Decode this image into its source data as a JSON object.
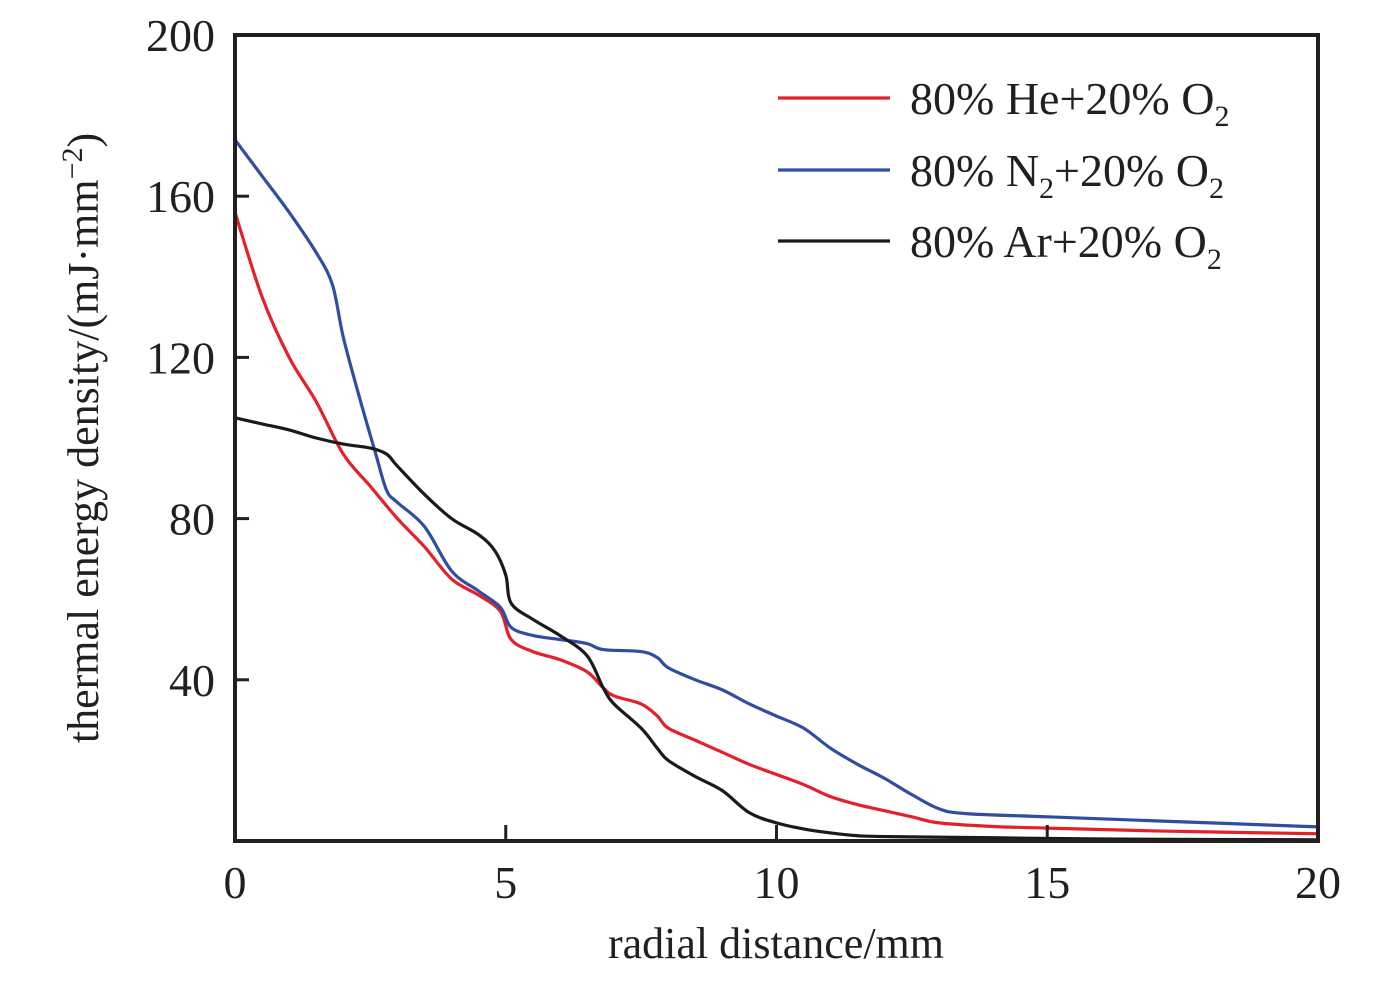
{
  "chart_data": {
    "type": "line",
    "title": "",
    "xlabel": "radial distance/mm",
    "ylabel_parts": [
      {
        "t": "thermal energy density/(mJ·mm"
      },
      {
        "sup": "−2"
      },
      {
        "t": ")"
      }
    ],
    "xlim": [
      0,
      20
    ],
    "ylim": [
      0,
      200
    ],
    "xticks": [
      0,
      5,
      10,
      15,
      20
    ],
    "yticks": [
      40,
      80,
      120,
      160,
      200
    ],
    "ytick_labels_extra": [],
    "grid": false,
    "legend_position": "top-right",
    "series": [
      {
        "name": "80% He+20% O2",
        "label_parts": [
          {
            "t": "80% He+20% O"
          },
          {
            "sub": "2"
          }
        ],
        "color": "#e5202a",
        "x": [
          0,
          0.5,
          1,
          1.5,
          2,
          2.5,
          3,
          3.5,
          4,
          4.5,
          4.9,
          5.1,
          5.5,
          6,
          6.5,
          6.8,
          7,
          7.5,
          7.8,
          8,
          8.5,
          9,
          9.5,
          10,
          10.5,
          11,
          11.5,
          12,
          12.5,
          13,
          14,
          15,
          17,
          20
        ],
        "y": [
          156,
          135,
          120,
          109,
          96,
          88,
          80,
          73,
          65,
          61,
          57,
          50,
          47,
          45,
          42,
          38,
          36,
          34,
          31,
          28,
          25,
          22,
          19,
          16.5,
          14,
          11,
          9,
          7.5,
          6,
          4.5,
          3.6,
          3.2,
          2.5,
          1.8
        ]
      },
      {
        "name": "80% N2+20% O2",
        "label_parts": [
          {
            "t": "80% N"
          },
          {
            "sub": "2"
          },
          {
            "t": "+20% O"
          },
          {
            "sub": "2"
          }
        ],
        "color": "#2f4ea2",
        "x": [
          0,
          0.5,
          1,
          1.5,
          1.8,
          2,
          2.3,
          2.6,
          2.8,
          3,
          3.5,
          4,
          4.5,
          4.9,
          5.1,
          5.5,
          6,
          6.5,
          6.8,
          7.5,
          7.8,
          8,
          8.5,
          9,
          9.5,
          10,
          10.5,
          11,
          11.5,
          12,
          12.5,
          13,
          13.5,
          15,
          17,
          20
        ],
        "y": [
          174,
          165,
          156,
          146,
          138,
          125,
          110,
          96,
          87,
          84,
          78,
          67,
          62,
          58,
          53,
          51,
          50,
          49,
          47.5,
          47,
          45.5,
          43,
          40,
          37.5,
          34,
          31,
          28,
          23,
          19,
          15.5,
          11.5,
          8,
          6.8,
          6,
          5,
          3.5
        ]
      },
      {
        "name": "80% Ar+20% O2",
        "label_parts": [
          {
            "t": "80% Ar+20% O"
          },
          {
            "sub": "2"
          }
        ],
        "color": "#1a1a1a",
        "x": [
          0,
          0.5,
          1,
          1.5,
          2,
          2.5,
          2.8,
          3,
          3.5,
          4,
          4.5,
          4.8,
          5,
          5.1,
          5.5,
          6,
          6.5,
          6.8,
          7,
          7.5,
          7.8,
          8,
          8.5,
          9,
          9.5,
          10,
          10.5,
          11,
          11.5,
          12,
          14,
          16,
          20
        ],
        "y": [
          105,
          103.5,
          102,
          100,
          98.5,
          97.5,
          96,
          93,
          86,
          80,
          76,
          72,
          66,
          59,
          55,
          51,
          46,
          38,
          34,
          28,
          23,
          20,
          16,
          12.5,
          7,
          4.5,
          3,
          2,
          1.3,
          1.1,
          0.8,
          0.5,
          0.3
        ]
      }
    ]
  }
}
